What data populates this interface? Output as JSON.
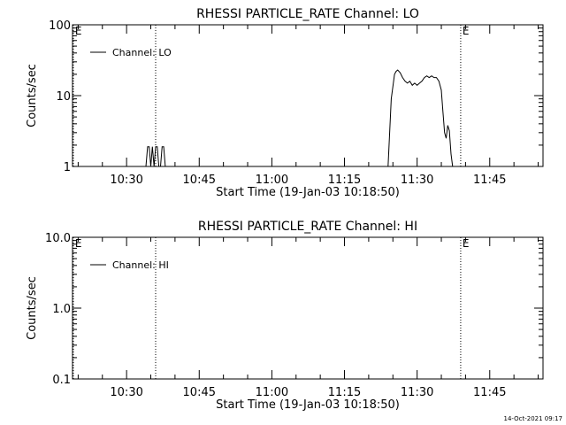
{
  "timestamp": "14-Oct-2021 09:17",
  "chart_data": [
    {
      "type": "line",
      "title": "RHESSI PARTICLE_RATE Channel: LO",
      "xlabel": "Start Time (19-Jan-03 10:18:50)",
      "ylabel": "Counts/sec",
      "y_scale": "log",
      "ylim": [
        1,
        100
      ],
      "y_ticks": [
        1,
        10,
        100
      ],
      "y_tick_labels": [
        "1",
        "10",
        "100"
      ],
      "xlim": [
        "10:18:50",
        "11:56:00"
      ],
      "x_ticks": [
        "10:30",
        "10:45",
        "11:00",
        "11:15",
        "11:30",
        "11:45"
      ],
      "legend": {
        "position": "top-left",
        "entries": [
          "Channel: LO"
        ]
      },
      "markers": [
        {
          "time": "10:19",
          "label": "E"
        },
        {
          "time": "10:36",
          "label": ""
        },
        {
          "time": "11:39",
          "label": "E"
        },
        {
          "time": "11:56",
          "label": ""
        }
      ],
      "series": [
        {
          "name": "Channel: LO",
          "x": [
            "10:34:00",
            "10:34:20",
            "10:34:40",
            "10:35:00",
            "10:35:20",
            "10:35:40",
            "10:36:00",
            "10:36:20",
            "10:36:40",
            "10:37:00",
            "10:37:20",
            "10:37:40",
            "10:38:00",
            "10:38:20",
            "11:24:00",
            "11:24:40",
            "11:25:20",
            "11:25:40",
            "11:26:00",
            "11:26:30",
            "11:27:00",
            "11:27:30",
            "11:28:00",
            "11:28:30",
            "11:29:00",
            "11:29:30",
            "11:30:00",
            "11:30:30",
            "11:31:00",
            "11:31:30",
            "11:32:00",
            "11:32:30",
            "11:33:00",
            "11:33:30",
            "11:34:00",
            "11:34:30",
            "11:35:00",
            "11:35:20",
            "11:35:40",
            "11:36:00",
            "11:36:20",
            "11:36:40",
            "11:37:00",
            "11:37:20"
          ],
          "y": [
            1,
            1.9,
            1.9,
            1,
            1.9,
            1,
            1.9,
            1.9,
            1,
            1,
            1.9,
            1.9,
            1,
            1,
            1,
            9,
            20,
            22,
            23,
            21,
            18,
            16,
            15,
            16,
            14,
            15,
            14,
            15,
            16,
            18,
            19,
            18,
            19,
            18,
            18,
            16,
            12,
            6,
            3,
            2.5,
            3.8,
            3.2,
            1.5,
            1
          ]
        }
      ]
    },
    {
      "type": "line",
      "title": "RHESSI PARTICLE_RATE Channel: HI",
      "xlabel": "Start Time (19-Jan-03 10:18:50)",
      "ylabel": "Counts/sec",
      "y_scale": "log",
      "ylim": [
        0.1,
        10
      ],
      "y_ticks": [
        0.1,
        1,
        10
      ],
      "y_tick_labels": [
        "0.1",
        "1.0",
        "10.0"
      ],
      "xlim": [
        "10:18:50",
        "11:56:00"
      ],
      "x_ticks": [
        "10:30",
        "10:45",
        "11:00",
        "11:15",
        "11:30",
        "11:45"
      ],
      "legend": {
        "position": "top-left",
        "entries": [
          "Channel: HI"
        ]
      },
      "markers": [
        {
          "time": "10:19",
          "label": "E"
        },
        {
          "time": "10:36",
          "label": ""
        },
        {
          "time": "11:39",
          "label": "E"
        },
        {
          "time": "11:56",
          "label": ""
        }
      ],
      "series": [
        {
          "name": "Channel: HI",
          "x": [],
          "y": []
        }
      ]
    }
  ]
}
